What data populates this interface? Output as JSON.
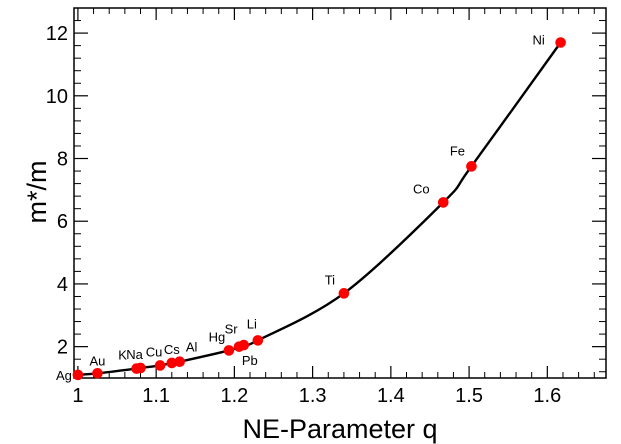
{
  "chart_data": {
    "type": "scatter",
    "title": "",
    "xlabel": "NE-Parameter q",
    "ylabel": "m*/m",
    "xlim": [
      0.995,
      1.675
    ],
    "ylim": [
      1.0,
      12.8
    ],
    "grid": false,
    "legend": "none",
    "x_ticks": [
      1,
      1.1,
      1.2,
      1.3,
      1.4,
      1.5,
      1.6
    ],
    "x_tick_labels": [
      "1",
      "1.1",
      "1.2",
      "1.3",
      "1.4",
      "1.5",
      "1.6"
    ],
    "y_ticks": [
      2,
      4,
      6,
      8,
      10,
      12
    ],
    "y_tick_labels": [
      "2",
      "4",
      "6",
      "8",
      "10",
      "12"
    ],
    "series": [
      {
        "points": [
          {
            "label": "Ag",
            "x": 1.0,
            "y": 1.1
          },
          {
            "label": "Au",
            "x": 1.025,
            "y": 1.15
          },
          {
            "label": "K",
            "x": 1.075,
            "y": 1.3
          },
          {
            "label": "Na",
            "x": 1.08,
            "y": 1.32
          },
          {
            "label": "Cu",
            "x": 1.105,
            "y": 1.4
          },
          {
            "label": "Cs",
            "x": 1.12,
            "y": 1.48
          },
          {
            "label": "Al",
            "x": 1.13,
            "y": 1.52
          },
          {
            "label": "Hg",
            "x": 1.193,
            "y": 1.88
          },
          {
            "label": "Sr",
            "x": 1.206,
            "y": 2.0
          },
          {
            "label": "Pb",
            "x": 1.212,
            "y": 2.05
          },
          {
            "label": "Li",
            "x": 1.23,
            "y": 2.2
          },
          {
            "label": "Ti",
            "x": 1.34,
            "y": 3.7
          },
          {
            "label": "Co",
            "x": 1.467,
            "y": 6.6
          },
          {
            "label": "Fe",
            "x": 1.503,
            "y": 7.75
          },
          {
            "label": "Ni",
            "x": 1.617,
            "y": 11.7
          }
        ]
      }
    ],
    "curve_color": "#000000",
    "marker_color": "#ff0000"
  }
}
